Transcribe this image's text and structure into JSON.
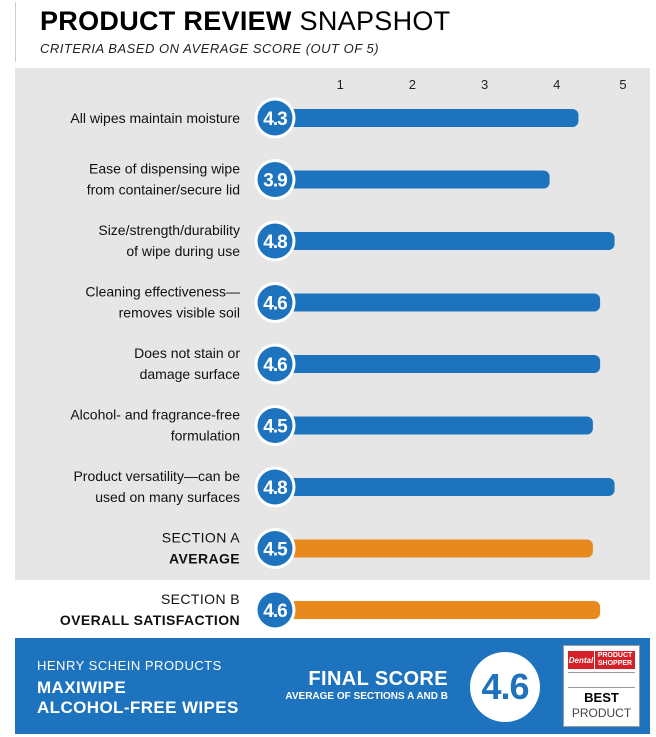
{
  "header": {
    "title_bold": "PRODUCT REVIEW",
    "title_light": "SNAPSHOT",
    "subtitle": "CRITERIA BASED ON AVERAGE SCORE (OUT OF 5)"
  },
  "chart_data": {
    "type": "bar",
    "orientation": "horizontal",
    "xlim": [
      0,
      5
    ],
    "x_ticks": [
      "1",
      "2",
      "3",
      "4",
      "5"
    ],
    "categories": [
      {
        "label": [
          "All wipes maintain moisture"
        ],
        "value": 4.3,
        "display": "4.3",
        "group": "criterion"
      },
      {
        "label": [
          "Ease of dispensing wipe",
          "from container/secure lid"
        ],
        "value": 3.9,
        "display": "3.9",
        "group": "criterion"
      },
      {
        "label": [
          "Size/strength/durability",
          "of wipe during use"
        ],
        "value": 4.8,
        "display": "4.8",
        "group": "criterion"
      },
      {
        "label": [
          "Cleaning effectiveness—",
          "removes visible soil"
        ],
        "value": 4.6,
        "display": "4.6",
        "group": "criterion"
      },
      {
        "label": [
          "Does not stain or",
          "damage surface"
        ],
        "value": 4.6,
        "display": "4.6",
        "group": "criterion"
      },
      {
        "label": [
          "Alcohol- and fragrance-free",
          "formulation"
        ],
        "value": 4.5,
        "display": "4.5",
        "group": "criterion"
      },
      {
        "label": [
          "Product versatility—can be",
          "used on many surfaces"
        ],
        "value": 4.8,
        "display": "4.8",
        "group": "criterion"
      },
      {
        "label": [
          "SECTION A",
          "AVERAGE"
        ],
        "value": 4.5,
        "display": "4.5",
        "group": "section"
      },
      {
        "label": [
          "SECTION B",
          "OVERALL SATISFACTION"
        ],
        "value": 4.6,
        "display": "4.6",
        "group": "section"
      }
    ],
    "colors": {
      "criterion_bar": "#1e73be",
      "section_bar": "#e8891d",
      "circle": "#1e73be",
      "panel": "#e6e6e6"
    },
    "grid": false
  },
  "footer": {
    "company": "HENRY SCHEIN PRODUCTS",
    "product_line1": "MAXIWIPE",
    "product_line2": "ALCOHOL-FREE WIPES",
    "final_title": "FINAL SCORE",
    "final_sub": "AVERAGE OF SECTIONS A AND B",
    "final_value": "4.6"
  },
  "badge": {
    "brand": "Dental",
    "brand2_line1": "PRODUCT",
    "brand2_line2": "SHOPPER",
    "line1": "BEST",
    "line2": "PRODUCT"
  }
}
